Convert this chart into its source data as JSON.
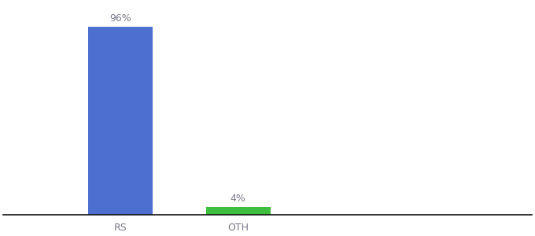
{
  "categories": [
    "RS",
    "OTH"
  ],
  "values": [
    96,
    4
  ],
  "bar_colors": [
    "#4d6fd0",
    "#3dbf3d"
  ],
  "label_texts": [
    "96%",
    "4%"
  ],
  "background_color": "#ffffff",
  "text_color": "#7a7a8a",
  "xlabel_fontsize": 9,
  "label_fontsize": 9,
  "ylim": [
    0,
    108
  ],
  "bar_width": 0.55,
  "x_positions": [
    1.0,
    2.0
  ],
  "xlim": [
    0.0,
    4.5
  ]
}
